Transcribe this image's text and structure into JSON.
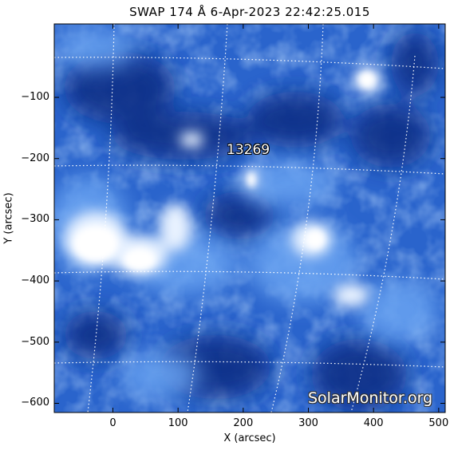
{
  "title": "SWAP 174 Å  6-Apr-2023 22:42:25.015",
  "axes": {
    "xlabel": "X (arcsec)",
    "ylabel": "Y (arcsec)",
    "xlim": [
      -90,
      510
    ],
    "ylim": [
      -615,
      20
    ],
    "xticks": [
      "0",
      "100",
      "200",
      "300",
      "400",
      "500"
    ],
    "yticks": [
      "−100",
      "−200",
      "−300",
      "−400",
      "−500",
      "−600"
    ]
  },
  "region_label": "13269",
  "watermark": "SolarMonitor.org",
  "colors": {
    "background_dark": "#0a2a7a",
    "mid_blue": "#2f6fd6",
    "bright": "#ffffff",
    "grid": "#ffffff"
  }
}
